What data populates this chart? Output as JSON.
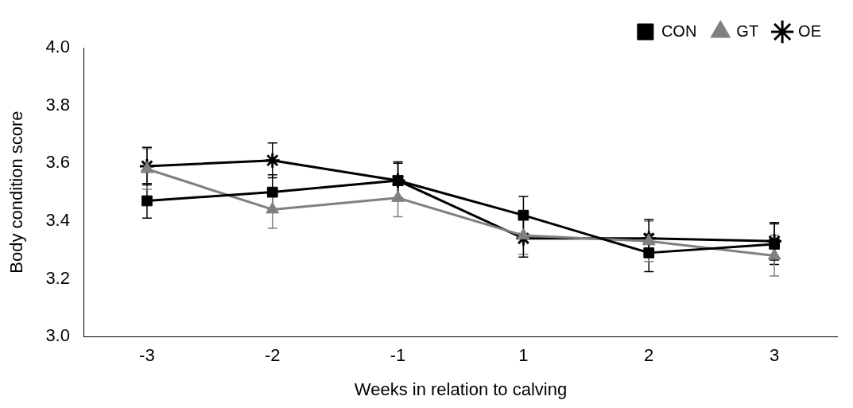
{
  "chart_data": {
    "type": "line",
    "xlabel": "Weeks in relation to calving",
    "ylabel": "Body condition score",
    "categories": [
      "-3",
      "-2",
      "-1",
      "1",
      "2",
      "3"
    ],
    "series": [
      {
        "name": "CON",
        "color": "#000000",
        "marker": "square",
        "values": [
          3.47,
          3.5,
          3.54,
          3.42,
          3.29,
          3.32
        ],
        "errors": [
          0.06,
          0.06,
          0.06,
          0.065,
          0.065,
          0.07
        ]
      },
      {
        "name": "GT",
        "color": "#808080",
        "marker": "triangle",
        "values": [
          3.58,
          3.44,
          3.48,
          3.35,
          3.33,
          3.28
        ],
        "errors": [
          0.07,
          0.065,
          0.065,
          0.065,
          0.07,
          0.07
        ]
      },
      {
        "name": "OE",
        "color": "#000000",
        "marker": "cross",
        "values": [
          3.59,
          3.61,
          3.54,
          3.34,
          3.34,
          3.33
        ],
        "errors": [
          0.065,
          0.06,
          0.065,
          0.065,
          0.065,
          0.065
        ]
      }
    ],
    "ylim": [
      3.0,
      4.0
    ],
    "yticks": [
      {
        "value": 3.0,
        "label": "3.0"
      },
      {
        "value": 3.2,
        "label": "3.2"
      },
      {
        "value": 3.4,
        "label": "3.4"
      },
      {
        "value": 3.6,
        "label": "3.6"
      },
      {
        "value": 3.8,
        "label": "3.8"
      },
      {
        "value": 4.0,
        "label": "4.0"
      }
    ],
    "grid": false,
    "legend": "top right",
    "line_style": "solid"
  }
}
